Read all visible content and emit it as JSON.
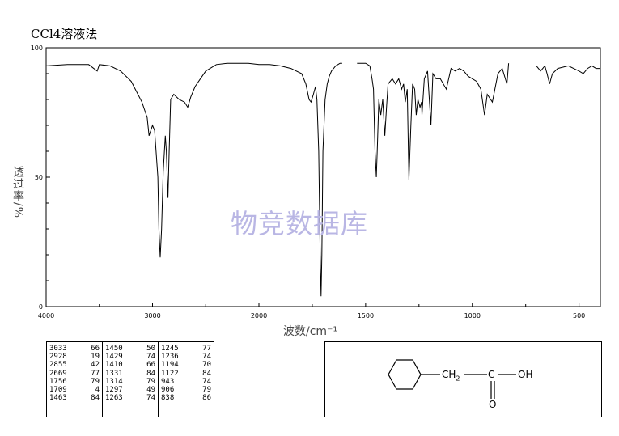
{
  "title": "CCl4溶液法",
  "watermark": "物竞数据库",
  "chart_data": {
    "type": "line",
    "title": "CCl4溶液法",
    "xlabel": "波数/cm⁻¹",
    "ylabel": "透过率/%",
    "xlim": [
      4000,
      400
    ],
    "ylim": [
      0,
      100
    ],
    "x_ticks": [
      "4000",
      "3000",
      "2000",
      "1500",
      "1000",
      "500"
    ],
    "y_ticks": [
      "0",
      "50",
      "100"
    ],
    "grid": false,
    "series": [
      {
        "x": [
          4000,
          3800,
          3600,
          3520,
          3500,
          3400,
          3300,
          3200,
          3100,
          3050,
          3033,
          3000,
          2980,
          2950,
          2940,
          2928,
          2915,
          2900,
          2880,
          2870,
          2855,
          2845,
          2830,
          2800,
          2750,
          2700,
          2669,
          2640,
          2600,
          2500,
          2400,
          2300,
          2200,
          2100,
          2000,
          1950,
          1900,
          1850,
          1800,
          1780,
          1765,
          1756,
          1745,
          1735,
          1728,
          1720,
          1713,
          1709,
          1705,
          1700,
          1690,
          1680,
          1670,
          1660,
          1650,
          1640,
          1630,
          1620,
          1610
        ],
        "y": [
          93,
          93.5,
          93.5,
          91,
          93.5,
          93,
          91,
          87,
          79,
          73,
          66,
          70,
          68,
          50,
          30,
          19,
          30,
          52,
          66,
          60,
          42,
          58,
          80,
          82,
          80,
          79,
          77,
          81,
          85,
          91,
          93.5,
          94,
          94,
          94,
          93.5,
          93.5,
          93,
          92,
          90,
          86,
          80,
          79,
          82,
          85,
          80,
          60,
          20,
          4,
          20,
          60,
          80,
          86,
          89,
          91,
          92,
          93,
          93.5,
          94,
          94
        ]
      },
      {
        "x": [
          1540,
          1500,
          1480,
          1470,
          1463,
          1456,
          1450,
          1445,
          1438,
          1429,
          1420,
          1410,
          1402,
          1395,
          1385,
          1375,
          1360,
          1345,
          1331,
          1322,
          1314,
          1305,
          1297,
          1288,
          1280,
          1270,
          1263,
          1255,
          1245,
          1238,
          1236,
          1225,
          1210,
          1194,
          1185,
          1170,
          1150,
          1122,
          1100,
          1080,
          1060,
          1040,
          1020,
          1000,
          980,
          960,
          943,
          930,
          906,
          880,
          860,
          838,
          830
        ],
        "y": [
          94,
          94,
          93,
          88,
          84,
          60,
          50,
          62,
          80,
          74,
          80,
          66,
          77,
          86,
          87,
          88,
          86,
          88,
          84,
          86,
          79,
          84,
          49,
          70,
          86,
          84,
          74,
          80,
          77,
          79,
          74,
          88,
          91,
          70,
          90,
          88,
          88,
          84,
          92,
          91,
          92,
          91,
          89,
          88,
          87,
          84,
          74,
          82,
          79,
          90,
          92,
          86,
          94
        ]
      },
      {
        "x": [
          700,
          680,
          660,
          650,
          638,
          625,
          600,
          550,
          500,
          480,
          460,
          440,
          420,
          400
        ],
        "y": [
          93,
          91,
          93,
          90,
          86,
          90,
          92,
          93,
          91,
          90,
          92,
          93,
          92,
          92
        ]
      }
    ],
    "peak_table": [
      [
        "3033",
        "66"
      ],
      [
        "2928",
        "19"
      ],
      [
        "2855",
        "42"
      ],
      [
        "2669",
        "77"
      ],
      [
        "1756",
        "79"
      ],
      [
        "1709",
        "4"
      ],
      [
        "1463",
        "84"
      ],
      [
        "1450",
        "50"
      ],
      [
        "1429",
        "74"
      ],
      [
        "1410",
        "66"
      ],
      [
        "1331",
        "84"
      ],
      [
        "1314",
        "79"
      ],
      [
        "1297",
        "49"
      ],
      [
        "1263",
        "74"
      ],
      [
        "1245",
        "77"
      ],
      [
        "1236",
        "74"
      ],
      [
        "1194",
        "70"
      ],
      [
        "1122",
        "84"
      ],
      [
        "943",
        "74"
      ],
      [
        "906",
        "79"
      ],
      [
        "838",
        "86"
      ]
    ]
  },
  "peak_columns": [
    [
      [
        "3033",
        "66"
      ],
      [
        "2928",
        "19"
      ],
      [
        "2855",
        "42"
      ],
      [
        "2669",
        "77"
      ],
      [
        "1756",
        "79"
      ],
      [
        "1709",
        "4"
      ],
      [
        "1463",
        "84"
      ]
    ],
    [
      [
        "1450",
        "50"
      ],
      [
        "1429",
        "74"
      ],
      [
        "1410",
        "66"
      ],
      [
        "1331",
        "84"
      ],
      [
        "1314",
        "79"
      ],
      [
        "1297",
        "49"
      ],
      [
        "1263",
        "74"
      ]
    ],
    [
      [
        "1245",
        "77"
      ],
      [
        "1236",
        "74"
      ],
      [
        "1194",
        "70"
      ],
      [
        "1122",
        "84"
      ],
      [
        "943",
        "74"
      ],
      [
        "906",
        "79"
      ],
      [
        "838",
        "86"
      ]
    ]
  ],
  "structure": {
    "ch2": "CH",
    "ch2_sub": "2",
    "c": "C",
    "oh": "OH",
    "o": "O"
  }
}
